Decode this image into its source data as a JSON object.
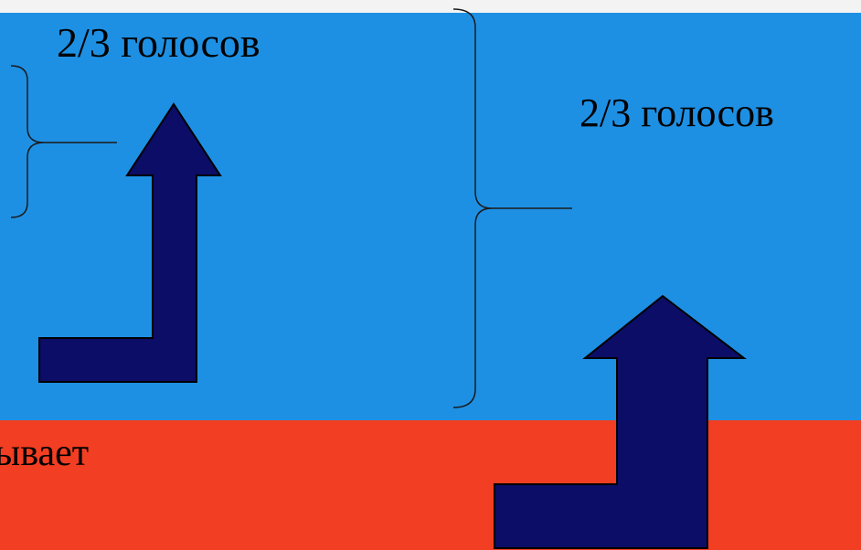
{
  "colors": {
    "top_band": "#f3f3f3",
    "blue_band": "#1e90e4",
    "red_band": "#f23e22",
    "arrow_fill": "#0c0d66",
    "arrow_stroke": "#000000",
    "bracket_stroke": "#1a1a1a",
    "text": "#000000"
  },
  "labels": {
    "left_vote": "2/3 голосов",
    "right_vote": "2/3 голосов",
    "bottom_partial": "ывает"
  },
  "icons": {
    "left_arrow": "arrow-turn-up-icon",
    "right_arrow": "arrow-turn-up-icon",
    "left_bracket": "right-curly-bracket-icon",
    "right_bracket": "right-curly-bracket-icon"
  }
}
